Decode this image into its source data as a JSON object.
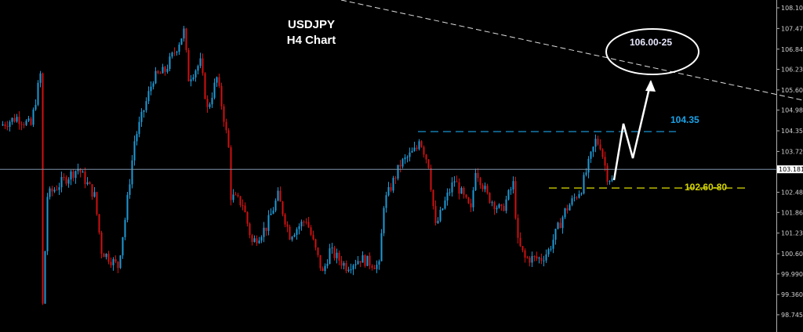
{
  "chart_data": {
    "type": "candlestick",
    "title": "USDJPY",
    "subtitle": "H4 Chart",
    "ylim": [
      98.5,
      108.3
    ],
    "y_ticks": [
      "108.105",
      "107.475",
      "106.845",
      "106.230",
      "105.600",
      "104.985",
      "104.355",
      "103.725",
      "102.480",
      "101.865",
      "101.235",
      "100.605",
      "99.990",
      "99.360",
      "98.745"
    ],
    "current_price": "103.181",
    "bull_color": "#1e9ad6",
    "bear_color": "#d01010",
    "close_path": [
      [
        0,
        104.52
      ],
      [
        7,
        104.76
      ],
      [
        13,
        104.52
      ],
      [
        17,
        106.07
      ],
      [
        18,
        99.03
      ],
      [
        20,
        102.37
      ],
      [
        27,
        102.85
      ],
      [
        33,
        103.21
      ],
      [
        40,
        102.37
      ],
      [
        43,
        100.7
      ],
      [
        50,
        100.22
      ],
      [
        53,
        101.66
      ],
      [
        57,
        104.05
      ],
      [
        60,
        104.76
      ],
      [
        65,
        105.96
      ],
      [
        70,
        106.19
      ],
      [
        75,
        106.91
      ],
      [
        78,
        107.39
      ],
      [
        80,
        105.96
      ],
      [
        85,
        106.43
      ],
      [
        88,
        105.0
      ],
      [
        92,
        105.96
      ],
      [
        95,
        104.76
      ],
      [
        97,
        103.81
      ],
      [
        98,
        102.37
      ],
      [
        103,
        102.13
      ],
      [
        107,
        100.94
      ],
      [
        113,
        101.42
      ],
      [
        118,
        102.37
      ],
      [
        123,
        101.18
      ],
      [
        130,
        101.66
      ],
      [
        137,
        100.0
      ],
      [
        140,
        100.7
      ],
      [
        147,
        100.22
      ],
      [
        153,
        100.46
      ],
      [
        161,
        100.22
      ],
      [
        163,
        102.13
      ],
      [
        170,
        103.33
      ],
      [
        177,
        103.81
      ],
      [
        178,
        104.16
      ],
      [
        182,
        103.33
      ],
      [
        185,
        101.42
      ],
      [
        190,
        102.37
      ],
      [
        193,
        102.85
      ],
      [
        200,
        101.9
      ],
      [
        202,
        103.21
      ],
      [
        207,
        102.37
      ],
      [
        213,
        101.9
      ],
      [
        218,
        102.73
      ],
      [
        220,
        100.94
      ],
      [
        223,
        100.46
      ],
      [
        230,
        100.46
      ],
      [
        233,
        100.7
      ],
      [
        240,
        101.9
      ],
      [
        247,
        102.61
      ],
      [
        250,
        103.33
      ],
      [
        253,
        104.05
      ],
      [
        255,
        103.93
      ],
      [
        258,
        102.97
      ],
      [
        260,
        102.85
      ]
    ],
    "annotations": {
      "resistance": {
        "label": "104.35",
        "price": 104.33,
        "color": "#1aa3e8"
      },
      "support": {
        "label": "102.60-80",
        "price": 102.61,
        "color": "#d4d400"
      },
      "target": {
        "label": "106.00-25",
        "price": 106.1
      },
      "trendline": {
        "from_price": 108.35,
        "to_price": 105.3,
        "color": "#ffffff"
      }
    }
  }
}
